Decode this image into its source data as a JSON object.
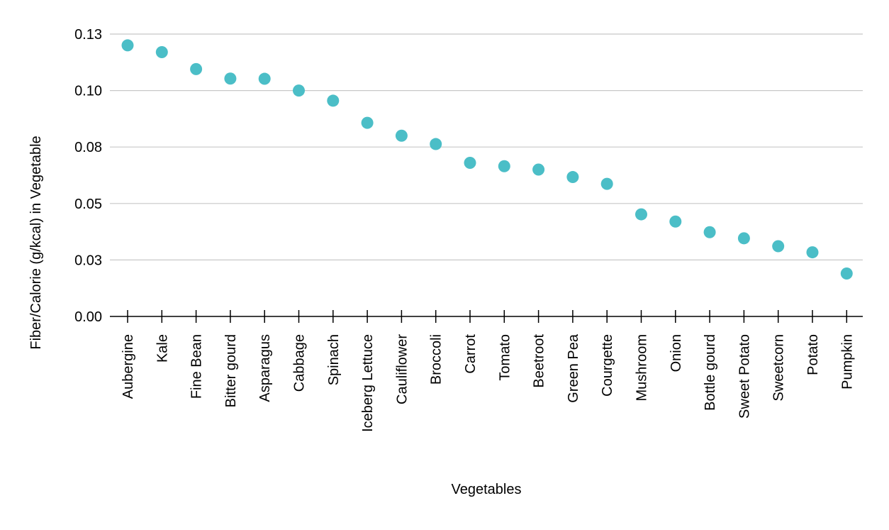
{
  "chart_data": {
    "type": "scatter",
    "title": "",
    "xlabel": "Vegetables",
    "ylabel": "Fiber/Calorie (g/kcal) in Vegetable",
    "categories": [
      "Aubergine",
      "Kale",
      "Fine Bean",
      "Bitter gourd",
      "Asparagus",
      "Cabbage",
      "Spinach",
      "Iceberg Lettuce",
      "Cauliflower",
      "Broccoli",
      "Carrot",
      "Tomato",
      "Beetroot",
      "Green Pea",
      "Courgette",
      "Mushroom",
      "Onion",
      "Bottle gourd",
      "Sweet Potato",
      "Sweetcorn",
      "Potato",
      "Pumpkin"
    ],
    "values": [
      0.12,
      0.117,
      0.1095,
      0.1053,
      0.1052,
      0.1,
      0.0955,
      0.0857,
      0.08,
      0.0763,
      0.068,
      0.0665,
      0.065,
      0.0617,
      0.0587,
      0.0452,
      0.042,
      0.0373,
      0.0346,
      0.0311,
      0.0284,
      0.019
    ],
    "ylim": [
      0,
      0.125
    ],
    "yticks": [
      0.0,
      0.025,
      0.05,
      0.075,
      0.1,
      0.125
    ],
    "ytick_labels": [
      "0.00",
      "0.03",
      "0.05",
      "0.08",
      "0.10",
      "0.13"
    ],
    "grid": true,
    "marker_color": "#4bbec7"
  }
}
